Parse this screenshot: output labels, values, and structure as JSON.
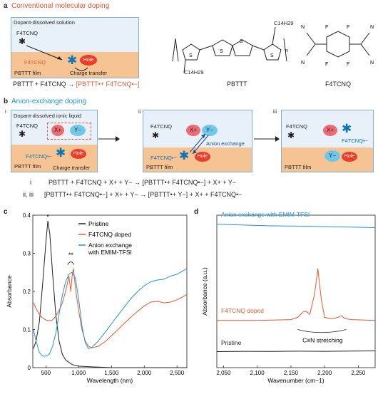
{
  "panel_a": {
    "letter": "a",
    "title": "Conventional molecular doping",
    "box_title": "Dopant-dissolved solution",
    "dopant_label": "F4TCNQ",
    "anion_label": "F4TCNQ",
    "hole_label": "Hole",
    "film_label": "PBTTT film",
    "charge_transfer": "Charge transfer",
    "equation_left": "PBTTT + F4TCNQ → ",
    "equation_right": "[PBTTT•+ F4TCNQ•−]",
    "molecule1_label": "PBTTT",
    "molecule2_label": "F4TCNQ",
    "subscript_top": "C14H29",
    "subscript_bottom": "C14H29",
    "repeat_n": "n"
  },
  "panel_b": {
    "letter": "b",
    "title": "Anion-exchange doping",
    "step_i": "i",
    "step_ii": "ii",
    "step_iii": "iii",
    "box_title": "Dopant-dissolved ionic liquid",
    "dopant_label": "F4TCNQ",
    "anion_label": "F4TCNQ•−",
    "cation": "X+",
    "anion": "Y−",
    "hole_label": "Hole",
    "film_label": "PBTTT film",
    "charge_transfer": "Charge transfer",
    "anion_exchange": "Anion exchange",
    "eq1_index": "i",
    "eq1": "PBTTT + F4TCNQ + X+ + Y− → [PBTTT•+ F4TCNQ•−] + X+ + Y−",
    "eq2_index": "ii, iii",
    "eq2": "[PBTTT•+ F4TCNQ•−] + X+ + Y− → [PBTTT•+ Y−] + X+ + F4TCNQ•−"
  },
  "panel_c": {
    "letter": "c",
    "chart_data": {
      "type": "line",
      "xlabel": "Wavelength (nm)",
      "ylabel": "Absorbance",
      "xlim": [
        300,
        2650
      ],
      "ylim": [
        0,
        0.4
      ],
      "xticks": [
        "500",
        "1,000",
        "1,500",
        "2,000",
        "2,500"
      ],
      "xtick_values": [
        500,
        1000,
        1500,
        2000,
        2500
      ],
      "yticks": [
        "0",
        "0.1",
        "0.2",
        "0.3",
        "0.4"
      ],
      "ytick_values": [
        0,
        0.1,
        0.2,
        0.3,
        0.4
      ],
      "annotations": [
        "*",
        "**"
      ],
      "legend_position": "top-right",
      "series": [
        {
          "name": "Pristine",
          "color": "#231f20",
          "x": [
            310,
            350,
            400,
            450,
            500,
            530,
            560,
            600,
            650,
            700,
            750,
            800,
            900,
            1000,
            1200,
            1500,
            2000,
            2650
          ],
          "y": [
            0.05,
            0.07,
            0.12,
            0.22,
            0.33,
            0.385,
            0.35,
            0.25,
            0.14,
            0.07,
            0.035,
            0.02,
            0.008,
            0.004,
            0.002,
            0.0,
            0.0,
            0.0
          ]
        },
        {
          "name": "F4TCNQ doped",
          "color": "#e8572c",
          "x": [
            310,
            350,
            400,
            450,
            500,
            550,
            600,
            650,
            700,
            750,
            800,
            850,
            880,
            900,
            920,
            950,
            1000,
            1050,
            1100,
            1150,
            1200,
            1300,
            1400,
            1500,
            1600,
            1700,
            1800,
            1900,
            2000,
            2100,
            2200,
            2300,
            2400,
            2500,
            2600,
            2650
          ],
          "y": [
            0.17,
            0.155,
            0.14,
            0.13,
            0.125,
            0.123,
            0.125,
            0.135,
            0.15,
            0.17,
            0.2,
            0.24,
            0.2,
            0.24,
            0.26,
            0.21,
            0.15,
            0.1,
            0.07,
            0.056,
            0.052,
            0.056,
            0.068,
            0.084,
            0.1,
            0.117,
            0.133,
            0.148,
            0.162,
            0.172,
            0.174,
            0.17,
            0.172,
            0.178,
            0.187,
            0.192
          ]
        },
        {
          "name": "Anion exchange with EMIM-TFSI",
          "color": "#1f97d4",
          "x": [
            310,
            350,
            400,
            450,
            500,
            550,
            600,
            650,
            700,
            750,
            800,
            850,
            900,
            950,
            1000,
            1050,
            1100,
            1150,
            1200,
            1300,
            1400,
            1500,
            1600,
            1700,
            1800,
            1900,
            2000,
            2100,
            2200,
            2300,
            2400,
            2500,
            2600,
            2650
          ],
          "y": [
            0.1,
            0.07,
            0.04,
            0.03,
            0.03,
            0.035,
            0.055,
            0.09,
            0.14,
            0.19,
            0.225,
            0.245,
            0.25,
            0.235,
            0.18,
            0.11,
            0.065,
            0.05,
            0.053,
            0.07,
            0.092,
            0.115,
            0.138,
            0.16,
            0.182,
            0.2,
            0.215,
            0.225,
            0.23,
            0.232,
            0.24,
            0.245,
            0.255,
            0.26
          ]
        }
      ]
    }
  },
  "panel_d": {
    "letter": "d",
    "chart_data": {
      "type": "line",
      "xlabel": "Wavenumber (cm−1)",
      "ylabel": "Absorbance (a.u.)",
      "xlim": [
        2040,
        2275
      ],
      "xticks": [
        "2,050",
        "2,100",
        "2,150",
        "2,200",
        "2,250"
      ],
      "xtick_values": [
        2050,
        2100,
        2150,
        2200,
        2250
      ],
      "yticks": [],
      "ylim": [
        0,
        1
      ],
      "annotation": "C≡N stretching",
      "series": [
        {
          "name": "Anion exchange with EMIM-TFSI",
          "color": "#1f97d4",
          "x": [
            2040,
            2080,
            2120,
            2160,
            2200,
            2240,
            2275
          ],
          "y": [
            0.94,
            0.935,
            0.93,
            0.928,
            0.925,
            0.922,
            0.918
          ]
        },
        {
          "name": "F4TCNQ doped",
          "color": "#e8572c",
          "x": [
            2040,
            2100,
            2150,
            2160,
            2168,
            2172,
            2178,
            2185,
            2190,
            2195,
            2200,
            2210,
            2220,
            2225,
            2230,
            2240,
            2275
          ],
          "y": [
            0.31,
            0.31,
            0.315,
            0.33,
            0.365,
            0.37,
            0.35,
            0.48,
            0.65,
            0.45,
            0.33,
            0.32,
            0.33,
            0.34,
            0.322,
            0.315,
            0.31
          ]
        },
        {
          "name": "Pristine",
          "color": "#231f20",
          "x": [
            2040,
            2080,
            2120,
            2160,
            2200,
            2240,
            2275
          ],
          "y": [
            0.105,
            0.107,
            0.106,
            0.108,
            0.107,
            0.109,
            0.11
          ]
        }
      ]
    }
  }
}
